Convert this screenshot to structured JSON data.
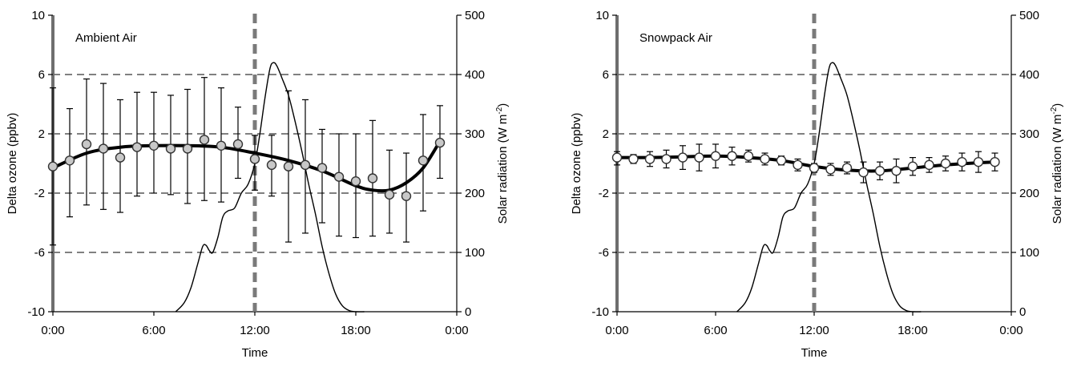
{
  "chart_data": [
    {
      "type": "scatter",
      "title": "Ambient Air",
      "xlabel": "Time",
      "ylabel": "Delta ozone (ppbv)",
      "y2label_main": "Solar radiation (W m",
      "y2label_sup": "-2",
      "y2label_close": ")",
      "xlim": [
        0,
        24
      ],
      "ylim": [
        -10,
        10
      ],
      "y2lim": [
        0,
        500
      ],
      "xticks": [
        0,
        6,
        12,
        18,
        24
      ],
      "xtick_labels": [
        "0:00",
        "6:00",
        "12:00",
        "18:00",
        "0:00"
      ],
      "yticks": [
        -10,
        -6,
        -2,
        2,
        6,
        10
      ],
      "ytick_labels": [
        "-10",
        "-6",
        "-2",
        "2",
        "6",
        "10"
      ],
      "y2ticks": [
        0,
        100,
        200,
        300,
        400,
        500
      ],
      "y2tick_labels": [
        "0",
        "100",
        "200",
        "300",
        "400",
        "500"
      ],
      "grid": "dashed horizontal at y = -6, -2, 2, 6",
      "marker_color": "#c8c8c8",
      "reference_line_x": 12,
      "points": {
        "x": [
          0,
          1,
          2,
          3,
          4,
          5,
          6,
          7,
          8,
          9,
          10,
          11,
          12,
          13,
          14,
          15,
          16,
          17,
          18,
          19,
          20,
          21,
          22,
          23
        ],
        "y": [
          -0.2,
          0.2,
          1.3,
          1.0,
          0.4,
          1.1,
          1.2,
          1.0,
          1.0,
          1.6,
          1.2,
          1.3,
          0.3,
          -0.1,
          -0.2,
          -0.1,
          -0.3,
          -0.9,
          -1.2,
          -1.0,
          -2.1,
          -2.2,
          0.2,
          1.4
        ],
        "err_low": [
          -5.5,
          -3.6,
          -2.8,
          -3.1,
          -3.3,
          -2.2,
          -2.0,
          -2.1,
          -2.7,
          -2.5,
          -2.6,
          -1.0,
          -1.8,
          -2.2,
          -5.3,
          -4.7,
          -4.0,
          -4.9,
          -5.0,
          -4.9,
          -4.7,
          -5.3,
          -3.2,
          -1.0
        ],
        "err_high": [
          5.1,
          3.7,
          5.7,
          5.4,
          4.3,
          4.8,
          4.8,
          4.6,
          5.0,
          5.8,
          5.1,
          3.8,
          1.9,
          1.9,
          4.9,
          4.3,
          2.3,
          2.0,
          2.0,
          2.9,
          0.9,
          0.7,
          3.3,
          3.9
        ]
      },
      "fit_curve": {
        "x": [
          0,
          2,
          4,
          6,
          8,
          10,
          12,
          14,
          16,
          18,
          19,
          20,
          21,
          22,
          23
        ],
        "y": [
          -0.3,
          0.7,
          1.1,
          1.2,
          1.2,
          1.1,
          0.7,
          0.2,
          -0.5,
          -1.5,
          -1.8,
          -1.8,
          -1.3,
          -0.3,
          1.5
        ]
      },
      "solar": {
        "x": [
          7.3,
          7.8,
          8.2,
          8.6,
          8.9,
          9.1,
          9.3,
          9.5,
          9.8,
          10.1,
          10.4,
          10.8,
          11.2,
          11.6,
          12.0,
          12.3,
          12.6,
          12.9,
          13.1,
          13.3,
          13.6,
          14.0,
          14.4,
          14.8,
          15.2,
          15.6,
          16.0,
          16.4,
          16.8,
          17.2,
          17.6,
          18.0,
          18.5
        ],
        "y": [
          0,
          15,
          40,
          80,
          110,
          112,
          103,
          100,
          125,
          160,
          170,
          175,
          200,
          215,
          250,
          300,
          360,
          410,
          420,
          415,
          395,
          365,
          320,
          270,
          215,
          165,
          110,
          65,
          30,
          10,
          2,
          0,
          0
        ]
      }
    },
    {
      "type": "scatter",
      "title": "Snowpack Air",
      "xlabel": "Time",
      "ylabel": "Delta ozone (ppbv)",
      "y2label_main": "Solar radiation (W m",
      "y2label_sup": "-2",
      "y2label_close": ")",
      "xlim": [
        0,
        24
      ],
      "ylim": [
        -10,
        10
      ],
      "y2lim": [
        0,
        500
      ],
      "xticks": [
        0,
        6,
        12,
        18,
        24
      ],
      "xtick_labels": [
        "0:00",
        "6:00",
        "12:00",
        "18:00",
        "0:00"
      ],
      "yticks": [
        -10,
        -6,
        -2,
        2,
        6,
        10
      ],
      "ytick_labels": [
        "-10",
        "-6",
        "-2",
        "2",
        "6",
        "10"
      ],
      "y2ticks": [
        0,
        100,
        200,
        300,
        400,
        500
      ],
      "y2tick_labels": [
        "0",
        "100",
        "200",
        "300",
        "400",
        "500"
      ],
      "grid": "dashed horizontal at y = -6, -2, 2, 6",
      "marker_color": "#ffffff",
      "reference_line_x": 12,
      "points": {
        "x": [
          0,
          1,
          2,
          3,
          4,
          5,
          6,
          7,
          8,
          9,
          10,
          11,
          12,
          13,
          14,
          15,
          16,
          17,
          18,
          19,
          20,
          21,
          22,
          23
        ],
        "y": [
          0.4,
          0.3,
          0.3,
          0.3,
          0.4,
          0.4,
          0.5,
          0.5,
          0.5,
          0.3,
          0.2,
          -0.1,
          -0.3,
          -0.4,
          -0.3,
          -0.6,
          -0.5,
          -0.5,
          -0.2,
          -0.1,
          0.0,
          0.1,
          0.1,
          0.1
        ],
        "err_low": [
          -0.1,
          0.0,
          -0.2,
          -0.3,
          -0.4,
          -0.5,
          -0.3,
          -0.1,
          0.1,
          -0.1,
          -0.1,
          -0.5,
          -0.6,
          -0.8,
          -0.7,
          -1.3,
          -1.1,
          -1.3,
          -0.8,
          -0.6,
          -0.5,
          -0.5,
          -0.6,
          -0.5
        ],
        "err_high": [
          0.8,
          0.6,
          0.8,
          0.9,
          1.2,
          1.3,
          1.3,
          1.1,
          0.9,
          0.7,
          0.5,
          0.3,
          0.0,
          0.0,
          0.1,
          0.1,
          0.1,
          0.3,
          0.4,
          0.4,
          0.5,
          0.7,
          0.8,
          0.7
        ]
      },
      "fit_curve": {
        "x": [
          0,
          2,
          4,
          6,
          8,
          10,
          12,
          14,
          16,
          18,
          20,
          22,
          23
        ],
        "y": [
          0.4,
          0.4,
          0.45,
          0.5,
          0.4,
          0.2,
          -0.2,
          -0.45,
          -0.5,
          -0.3,
          -0.1,
          0.05,
          0.1
        ]
      },
      "solar": {
        "x": [
          7.3,
          7.8,
          8.2,
          8.6,
          8.9,
          9.1,
          9.3,
          9.5,
          9.8,
          10.1,
          10.4,
          10.8,
          11.2,
          11.6,
          12.0,
          12.3,
          12.6,
          12.9,
          13.1,
          13.3,
          13.6,
          14.0,
          14.4,
          14.8,
          15.2,
          15.6,
          16.0,
          16.4,
          16.8,
          17.2,
          17.6,
          18.0,
          18.5
        ],
        "y": [
          0,
          15,
          40,
          80,
          110,
          112,
          103,
          100,
          125,
          160,
          170,
          175,
          200,
          215,
          250,
          300,
          360,
          410,
          420,
          415,
          395,
          365,
          320,
          270,
          215,
          165,
          110,
          65,
          30,
          10,
          2,
          0,
          0
        ]
      }
    }
  ]
}
